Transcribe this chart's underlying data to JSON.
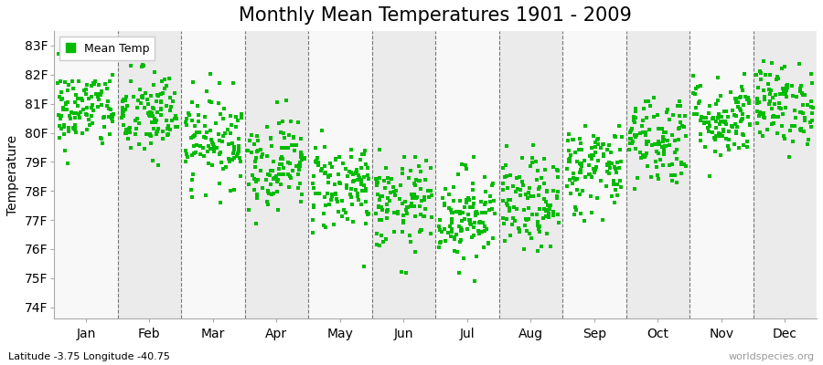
{
  "title": "Monthly Mean Temperatures 1901 - 2009",
  "ylabel": "Temperature",
  "xlabel_bottom": "Latitude -3.75 Longitude -40.75",
  "watermark": "worldspecies.org",
  "legend_label": "Mean Temp",
  "ytick_labels": [
    "74F",
    "75F",
    "76F",
    "77F",
    "78F",
    "79F",
    "80F",
    "81F",
    "82F",
    "83F"
  ],
  "ytick_values": [
    74,
    75,
    76,
    77,
    78,
    79,
    80,
    81,
    82,
    83
  ],
  "ylim": [
    73.6,
    83.5
  ],
  "months": [
    "Jan",
    "Feb",
    "Mar",
    "Apr",
    "May",
    "Jun",
    "Jul",
    "Aug",
    "Sep",
    "Oct",
    "Nov",
    "Dec"
  ],
  "marker_color": "#00bb00",
  "marker_size": 3,
  "bg_color_odd": "#ebebeb",
  "bg_color_even": "#f8f8f8",
  "title_fontsize": 15,
  "axis_label_fontsize": 10,
  "tick_fontsize": 10,
  "random_seed": 42,
  "n_years": 109,
  "monthly_mean_F": [
    80.8,
    80.6,
    79.8,
    79.0,
    78.2,
    77.5,
    77.2,
    77.5,
    78.8,
    79.8,
    80.5,
    81.0
  ],
  "monthly_std_F": [
    0.7,
    0.8,
    0.8,
    0.8,
    0.8,
    0.8,
    0.8,
    0.8,
    0.8,
    0.8,
    0.7,
    0.7
  ]
}
